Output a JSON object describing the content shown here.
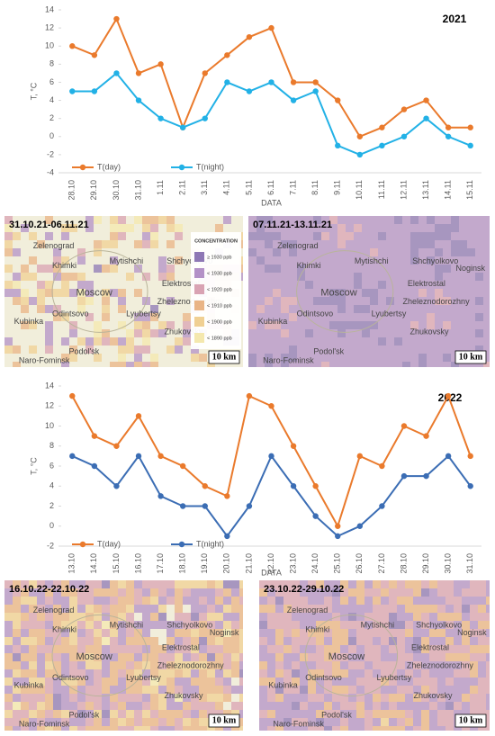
{
  "chart_data": [
    {
      "type": "line",
      "annotation": "2021",
      "ylabel": "T, °C",
      "xlabel": "DATA",
      "categories": [
        "28.10",
        "29.10",
        "30.10",
        "31.10",
        "1.11",
        "2.11",
        "3.11",
        "4.11",
        "5.11",
        "6.11",
        "7.11",
        "8.11",
        "9.11",
        "10.11",
        "11.11",
        "12.11",
        "13.11",
        "14.11",
        "15.11"
      ],
      "series": [
        {
          "name": "T(day)",
          "color": "#ea7a2c",
          "values": [
            10,
            9,
            13,
            7,
            8,
            1,
            7,
            9,
            11,
            12,
            6,
            6,
            4,
            0,
            1,
            3,
            4,
            1,
            1
          ]
        },
        {
          "name": "T(night)",
          "color": "#22b1e6",
          "values": [
            5,
            5,
            7,
            4,
            2,
            1,
            2,
            6,
            5,
            6,
            4,
            5,
            -1,
            -2,
            -1,
            0,
            2,
            0,
            -1
          ]
        }
      ],
      "ylim": [
        -4,
        14
      ],
      "yticks": [
        -4,
        -2,
        0,
        2,
        4,
        6,
        8,
        10,
        12,
        14
      ],
      "grid": false,
      "legend": "bottom-left"
    },
    {
      "type": "line",
      "annotation": "2022",
      "ylabel": "T, °C",
      "xlabel": "DATA",
      "categories": [
        "13.10",
        "14.10",
        "15.10",
        "16.10",
        "17.10",
        "18.10",
        "19.10",
        "20.10",
        "21.10",
        "22.10",
        "23.10",
        "24.10",
        "25.10",
        "26.10",
        "27.10",
        "28.10",
        "29.10",
        "30.10",
        "31.10"
      ],
      "series": [
        {
          "name": "T(day)",
          "color": "#ea7a2c",
          "values": [
            13,
            9,
            8,
            11,
            7,
            6,
            4,
            3,
            13,
            12,
            8,
            4,
            0,
            7,
            6,
            10,
            9,
            13,
            7
          ]
        },
        {
          "name": "T(night)",
          "color": "#3b6db4",
          "values": [
            7,
            6,
            4,
            7,
            3,
            2,
            2,
            -1,
            2,
            7,
            4,
            1,
            -1,
            0,
            2,
            5,
            5,
            7,
            4
          ]
        }
      ],
      "ylim": [
        -2,
        14
      ],
      "yticks": [
        -2,
        0,
        2,
        4,
        6,
        8,
        10,
        12,
        14
      ],
      "grid": false,
      "legend": "bottom-left"
    }
  ],
  "maps": [
    {
      "period": "31.10.21-06.11.21",
      "scale": "10 km",
      "cities": [
        "Zelenograd",
        "Khimki",
        "Mytishchi",
        "Shchyolkovo",
        "Moscow",
        "Elektrostal",
        "Zheleznodorozhny",
        "Kubinka",
        "Odintsovo",
        "Lyubertsy",
        "Zhukovsky",
        "Podol'sk",
        "Naro-Fominsk"
      ],
      "legend": {
        "title": "CONCENTRATION",
        "items": [
          {
            "label": "≥ 1930 ppb",
            "color": "#8e78b5"
          },
          {
            "label": "< 1930 ppb",
            "color": "#b391c7"
          },
          {
            "label": "< 1920 ppb",
            "color": "#d9a3b3"
          },
          {
            "label": "< 1910 ppb",
            "color": "#e9b486"
          },
          {
            "label": "< 1900 ppb",
            "color": "#f0d093"
          },
          {
            "label": "< 1890 ppb",
            "color": "#f4e8ae"
          }
        ]
      }
    },
    {
      "period": "07.11.21-13.11.21",
      "scale": "10 km",
      "cities": [
        "Zelenograd",
        "Khimki",
        "Mytishchi",
        "Shchyolkovo",
        "Noginsk",
        "Moscow",
        "Elektrostal",
        "Zheleznodorozhny",
        "Kubinka",
        "Odintsovo",
        "Lyubertsy",
        "Zhukovsky",
        "Podol'sk",
        "Naro-Fominsk"
      ]
    },
    {
      "period": "16.10.22-22.10.22",
      "scale": "10 km",
      "cities": [
        "Zelenograd",
        "Khimki",
        "Mytishchi",
        "Shchyolkovo",
        "Noginsk",
        "Moscow",
        "Elektrostal",
        "Zheleznodorozhny",
        "Kubinka",
        "Odintsovo",
        "Lyubertsy",
        "Zhukovsky",
        "Podol'sk",
        "Naro-Fominsk"
      ]
    },
    {
      "period": "23.10.22-29.10.22",
      "scale": "10 km",
      "cities": [
        "Zelenograd",
        "Khimki",
        "Mytishchi",
        "Shchyolkovo",
        "Noginsk",
        "Moscow",
        "Elektrostal",
        "Zheleznodorozhny",
        "Kubinka",
        "Odintsovo",
        "Lyubertsy",
        "Zhukovsky",
        "Podol'sk",
        "Naro-Fominsk"
      ]
    }
  ]
}
